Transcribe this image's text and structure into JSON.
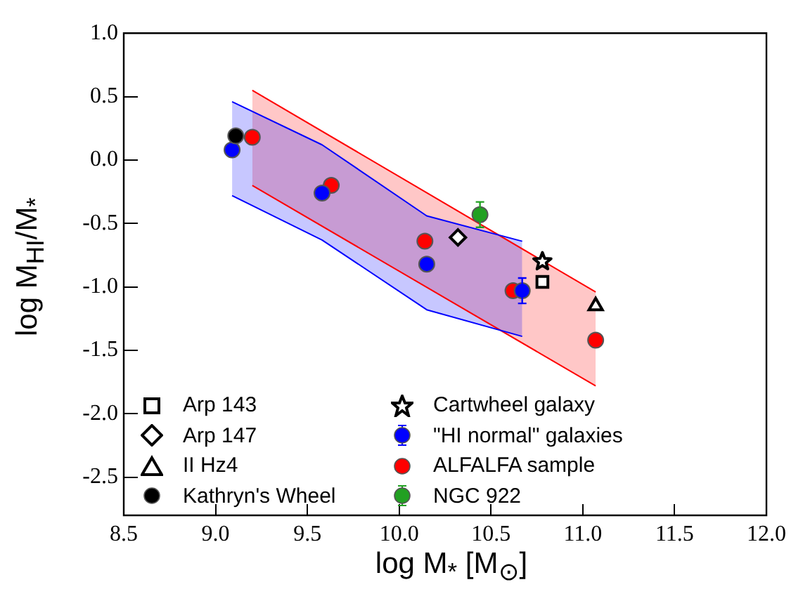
{
  "chart_data": {
    "type": "scatter",
    "xlabel": "log M$_{*}$ [M$_{⊙}$]",
    "ylabel": "log M$_{HI}$/M$_{*}$",
    "xlim": [
      8.5,
      12
    ],
    "xticks": [
      8.5,
      {
        "value": 9,
        "label": "9.0"
      },
      9.5,
      {
        "value": 10,
        "label": "10.0"
      },
      10.5,
      {
        "value": 11,
        "label": "11.0"
      },
      11.5,
      {
        "value": 12,
        "label": "12.0"
      }
    ],
    "ylim": [
      -2.8,
      1
    ],
    "yticks": [
      {
        "value": -2.5,
        "label": "-2.5"
      },
      {
        "value": -2,
        "label": "-2.0"
      },
      {
        "value": -1.5,
        "label": "-1.5"
      },
      {
        "value": -1,
        "label": "-1.0"
      },
      {
        "value": -0.5,
        "label": "-0.5"
      },
      {
        "value": 0,
        "label": "0.0"
      },
      0.5,
      {
        "value": 1,
        "label": "1.0"
      }
    ],
    "grid": false,
    "legend": "bottom left",
    "series": [
      {
        "type": "area",
        "color": "#0000ff",
        "x": [
          9.09,
          9.58,
          10.15,
          10.67
        ],
        "values": [
          null,
          null,
          null,
          null
        ],
        "upper": [
          0.46,
          0.12,
          -0.44,
          -0.64
        ],
        "lower": [
          -0.28,
          -0.63,
          -1.18,
          -1.39
        ]
      },
      {
        "type": "area",
        "color": "#ff0000",
        "x": [
          9.2,
          11.07
        ],
        "values": [
          null,
          null
        ],
        "upper": [
          0.55,
          -1.04
        ],
        "lower": [
          -0.2,
          -1.78
        ]
      },
      {
        "type": "line",
        "color": "#0000ff",
        "marker": "none",
        "x": [
          9.09,
          9.58,
          10.15,
          10.67
        ],
        "values": [
          0.46,
          0.12,
          -0.44,
          -0.64
        ]
      },
      {
        "type": "line",
        "color": "#0000ff",
        "marker": "none",
        "x": [
          9.09,
          9.58,
          10.15,
          10.67
        ],
        "values": [
          -0.28,
          -0.63,
          -1.18,
          -1.39
        ]
      },
      {
        "type": "line",
        "color": "#ff0000",
        "marker": "none",
        "x": [
          9.2,
          11.07
        ],
        "values": [
          0.55,
          -1.04
        ]
      },
      {
        "type": "line",
        "color": "#ff0000",
        "marker": "none",
        "x": [
          9.2,
          11.07
        ],
        "values": [
          -0.2,
          -1.78
        ]
      },
      {
        "name": "Arp 143",
        "color": "#000000",
        "marker": "square",
        "x": [
          10.78
        ],
        "values": [
          -0.96
        ]
      },
      {
        "name": "Arp 147",
        "color": "#000000",
        "marker": "diamond",
        "x": [
          10.32
        ],
        "values": [
          -0.61
        ]
      },
      {
        "name": "II Hz4",
        "color": "#000000",
        "marker": "triangle",
        "x": [
          11.07
        ],
        "values": [
          -1.15
        ]
      },
      {
        "name": "Kathryn's Wheel",
        "color": "#000000",
        "marker": "circle",
        "x": [
          9.11
        ],
        "values": [
          0.19
        ]
      },
      {
        "name": "Cartwheel galaxy",
        "color": "#000000",
        "marker": "star",
        "x": [
          10.78
        ],
        "values": [
          -0.8
        ]
      },
      {
        "name": "\"HI normal\" galaxies",
        "color": "#0000ff",
        "marker": "circle",
        "x": [
          9.09,
          9.58,
          10.15,
          10.67
        ],
        "values": [
          0.08,
          -0.26,
          -0.82,
          -1.03
        ],
        "errors": [
          null,
          null,
          null,
          0.1
        ]
      },
      {
        "name": "ALFALFA sample",
        "color": "#ff0000",
        "marker": "circle",
        "x": [
          9.2,
          9.63,
          10.14,
          10.62,
          11.07
        ],
        "values": [
          0.18,
          -0.2,
          -0.64,
          -1.03,
          -1.42
        ]
      },
      {
        "name": "NGC 922",
        "color": "#22a022",
        "marker": "circle",
        "x": [
          10.44
        ],
        "values": [
          -0.43
        ],
        "errors": [
          0.1
        ]
      }
    ]
  }
}
